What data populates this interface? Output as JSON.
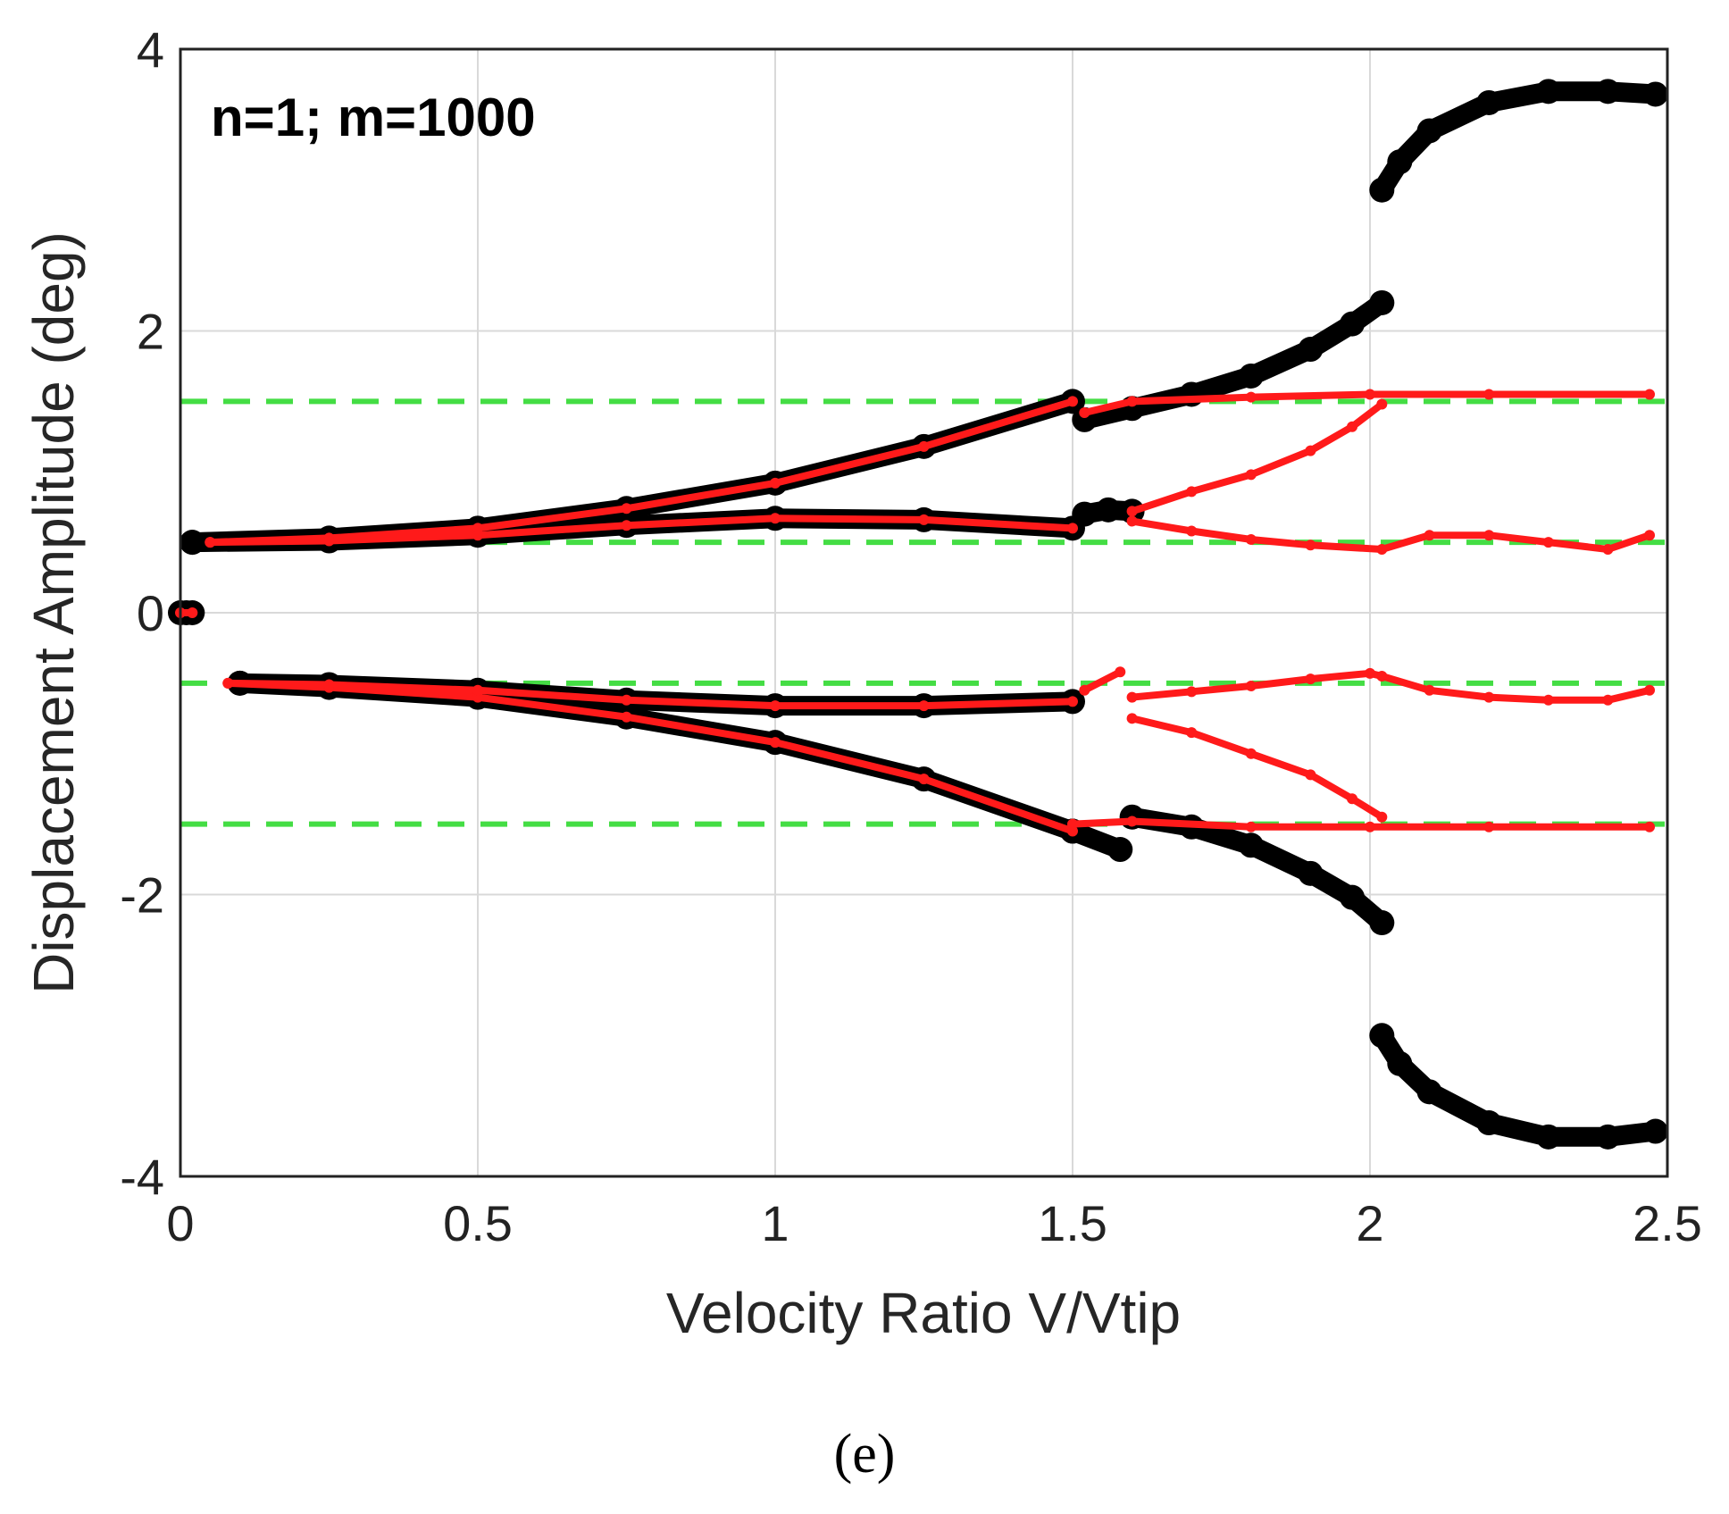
{
  "chart_data": {
    "type": "scatter",
    "title": "",
    "annotation": "n=1; m=1000",
    "caption": "(e)",
    "xlabel": "Velocity Ratio V/Vtip",
    "ylabel": "Displacement Amplitude (deg)",
    "xlim": [
      0,
      2.5
    ],
    "ylim": [
      -4,
      4
    ],
    "xticks": [
      0,
      0.5,
      1,
      1.5,
      2,
      2.5
    ],
    "xtick_labels": [
      "0",
      "0.5",
      "1",
      "1.5",
      "2",
      "2.5"
    ],
    "yticks": [
      -4,
      -2,
      0,
      2,
      4
    ],
    "ytick_labels": [
      "-4",
      "-2",
      "0",
      "2",
      "4"
    ],
    "grid": true,
    "colors": {
      "black_series": "#000000",
      "red_series": "#ff1a1a",
      "reference": "#44dd44",
      "grid": "#d9d9d9"
    },
    "reference_lines": [
      1.5,
      0.5,
      -0.5,
      -1.5
    ],
    "series": [
      {
        "name": "black",
        "color": "#000000",
        "segments": [
          {
            "x": [
              0.0,
              0.01,
              0.02
            ],
            "y": [
              0.0,
              0.0,
              0.0
            ]
          },
          {
            "x": [
              0.02,
              0.25,
              0.5,
              0.75,
              1.0,
              1.25,
              1.5
            ],
            "y": [
              0.5,
              0.53,
              0.6,
              0.74,
              0.92,
              1.18,
              1.5
            ]
          },
          {
            "x": [
              0.02,
              0.25,
              0.5,
              0.75,
              1.0,
              1.25,
              1.5
            ],
            "y": [
              0.5,
              0.51,
              0.55,
              0.62,
              0.67,
              0.66,
              0.6
            ]
          },
          {
            "x": [
              0.1,
              0.25,
              0.5,
              0.75,
              1.0,
              1.25,
              1.5
            ],
            "y": [
              -0.5,
              -0.53,
              -0.6,
              -0.74,
              -0.92,
              -1.18,
              -1.55
            ]
          },
          {
            "x": [
              0.1,
              0.25,
              0.5,
              0.75,
              1.0,
              1.25,
              1.5
            ],
            "y": [
              -0.5,
              -0.51,
              -0.55,
              -0.62,
              -0.66,
              -0.66,
              -0.63
            ]
          },
          {
            "x": [
              1.5,
              1.58
            ],
            "y": [
              -1.55,
              -1.68
            ]
          },
          {
            "x": [
              1.52,
              1.6,
              1.7,
              1.8,
              1.9,
              1.97,
              2.02
            ],
            "y": [
              1.37,
              1.45,
              1.55,
              1.68,
              1.87,
              2.05,
              2.2
            ]
          },
          {
            "x": [
              1.52,
              1.56,
              1.6
            ],
            "y": [
              0.7,
              0.73,
              0.72
            ]
          },
          {
            "x": [
              1.6,
              1.7,
              1.8,
              1.9,
              1.97,
              2.02
            ],
            "y": [
              -1.45,
              -1.52,
              -1.65,
              -1.85,
              -2.02,
              -2.2
            ]
          },
          {
            "x": [
              2.02,
              2.05,
              2.1,
              2.2,
              2.3,
              2.4,
              2.48
            ],
            "y": [
              3.0,
              3.2,
              3.42,
              3.62,
              3.7,
              3.7,
              3.68
            ]
          },
          {
            "x": [
              2.02,
              2.05,
              2.1,
              2.2,
              2.3,
              2.4,
              2.48
            ],
            "y": [
              -3.0,
              -3.2,
              -3.4,
              -3.62,
              -3.72,
              -3.72,
              -3.68
            ]
          }
        ]
      },
      {
        "name": "red",
        "color": "#ff1a1a",
        "segments": [
          {
            "x": [
              0.0,
              0.02
            ],
            "y": [
              0.0,
              0.0
            ]
          },
          {
            "x": [
              0.05,
              0.25,
              0.5,
              0.75,
              1.0,
              1.25,
              1.5
            ],
            "y": [
              0.5,
              0.53,
              0.6,
              0.74,
              0.92,
              1.18,
              1.5
            ]
          },
          {
            "x": [
              0.05,
              0.25,
              0.5,
              0.75,
              1.0,
              1.25,
              1.5
            ],
            "y": [
              0.5,
              0.51,
              0.55,
              0.62,
              0.67,
              0.66,
              0.6
            ]
          },
          {
            "x": [
              0.08,
              0.25,
              0.5,
              0.75,
              1.0,
              1.25,
              1.5
            ],
            "y": [
              -0.5,
              -0.53,
              -0.6,
              -0.74,
              -0.92,
              -1.18,
              -1.55
            ]
          },
          {
            "x": [
              0.08,
              0.25,
              0.5,
              0.75,
              1.0,
              1.25,
              1.5
            ],
            "y": [
              -0.5,
              -0.51,
              -0.55,
              -0.62,
              -0.66,
              -0.66,
              -0.63
            ]
          },
          {
            "x": [
              1.52,
              1.6,
              1.8,
              2.0,
              2.2,
              2.47
            ],
            "y": [
              1.42,
              1.5,
              1.53,
              1.55,
              1.55,
              1.55
            ]
          },
          {
            "x": [
              1.6,
              1.7,
              1.8,
              1.9,
              1.97,
              2.02
            ],
            "y": [
              0.72,
              0.86,
              0.98,
              1.15,
              1.32,
              1.48
            ]
          },
          {
            "x": [
              1.6,
              1.7,
              1.8,
              1.9,
              2.02,
              2.1,
              2.2,
              2.3,
              2.4,
              2.47
            ],
            "y": [
              0.65,
              0.58,
              0.52,
              0.48,
              0.45,
              0.55,
              0.55,
              0.5,
              0.45,
              0.55
            ]
          },
          {
            "x": [
              1.52,
              1.58
            ],
            "y": [
              -0.55,
              -0.42
            ]
          },
          {
            "x": [
              1.6,
              1.7,
              1.8,
              1.9,
              2.0,
              2.02,
              2.1,
              2.2,
              2.3,
              2.4,
              2.47
            ],
            "y": [
              -0.6,
              -0.56,
              -0.52,
              -0.47,
              -0.43,
              -0.45,
              -0.55,
              -0.6,
              -0.62,
              -0.62,
              -0.55
            ]
          },
          {
            "x": [
              1.6,
              1.7,
              1.8,
              1.9,
              1.97,
              2.02
            ],
            "y": [
              -0.75,
              -0.85,
              -1.0,
              -1.15,
              -1.32,
              -1.45
            ]
          },
          {
            "x": [
              1.5,
              1.6,
              1.8,
              2.0,
              2.2,
              2.47
            ],
            "y": [
              -1.5,
              -1.48,
              -1.52,
              -1.52,
              -1.52,
              -1.52
            ]
          }
        ]
      }
    ]
  }
}
